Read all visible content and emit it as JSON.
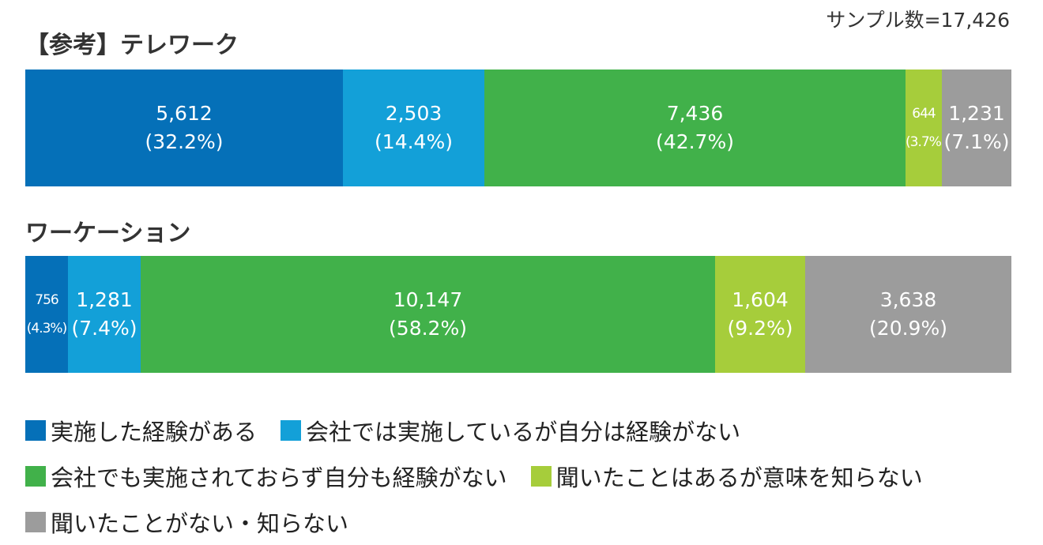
{
  "sample_label": "サンプル数=17,426",
  "colors": {
    "experienced": "#0570b8",
    "company_only": "#13a0d8",
    "none": "#41b14a",
    "heard_only": "#a6cd3b",
    "unknown": "#9c9c9c"
  },
  "chart_data": {
    "type": "bar",
    "stacked": true,
    "orientation": "horizontal",
    "normalized": true,
    "categories": [
      "【参考】テレワーク",
      "ワーケーション"
    ],
    "series": [
      {
        "name": "実施した経験がある",
        "color_key": "experienced",
        "values": [
          5612,
          756
        ],
        "labels": [
          "(32.2%)",
          "(4.3%)"
        ],
        "value_labels": [
          "5,612",
          "756"
        ]
      },
      {
        "name": "会社では実施しているが自分は経験がない",
        "color_key": "company_only",
        "values": [
          2503,
          1281
        ],
        "labels": [
          "(14.4%)",
          "(7.4%)"
        ],
        "value_labels": [
          "2,503",
          "1,281"
        ]
      },
      {
        "name": "会社でも実施されておらず自分も経験がない",
        "color_key": "none",
        "values": [
          7436,
          10147
        ],
        "labels": [
          "(42.7%)",
          "(58.2%)"
        ],
        "value_labels": [
          "7,436",
          "10,147"
        ]
      },
      {
        "name": "聞いたことはあるが意味を知らない",
        "color_key": "heard_only",
        "values": [
          644,
          1604
        ],
        "labels": [
          "(3.7%)",
          "(9.2%)"
        ],
        "value_labels": [
          "644",
          "1,604"
        ]
      },
      {
        "name": "聞いたことがない・知らない",
        "color_key": "unknown",
        "values": [
          1231,
          3638
        ],
        "labels": [
          "(7.1%)",
          "(20.9%)"
        ],
        "value_labels": [
          "1,231",
          "3,638"
        ]
      }
    ],
    "legend_position": "bottom",
    "grid": false
  }
}
